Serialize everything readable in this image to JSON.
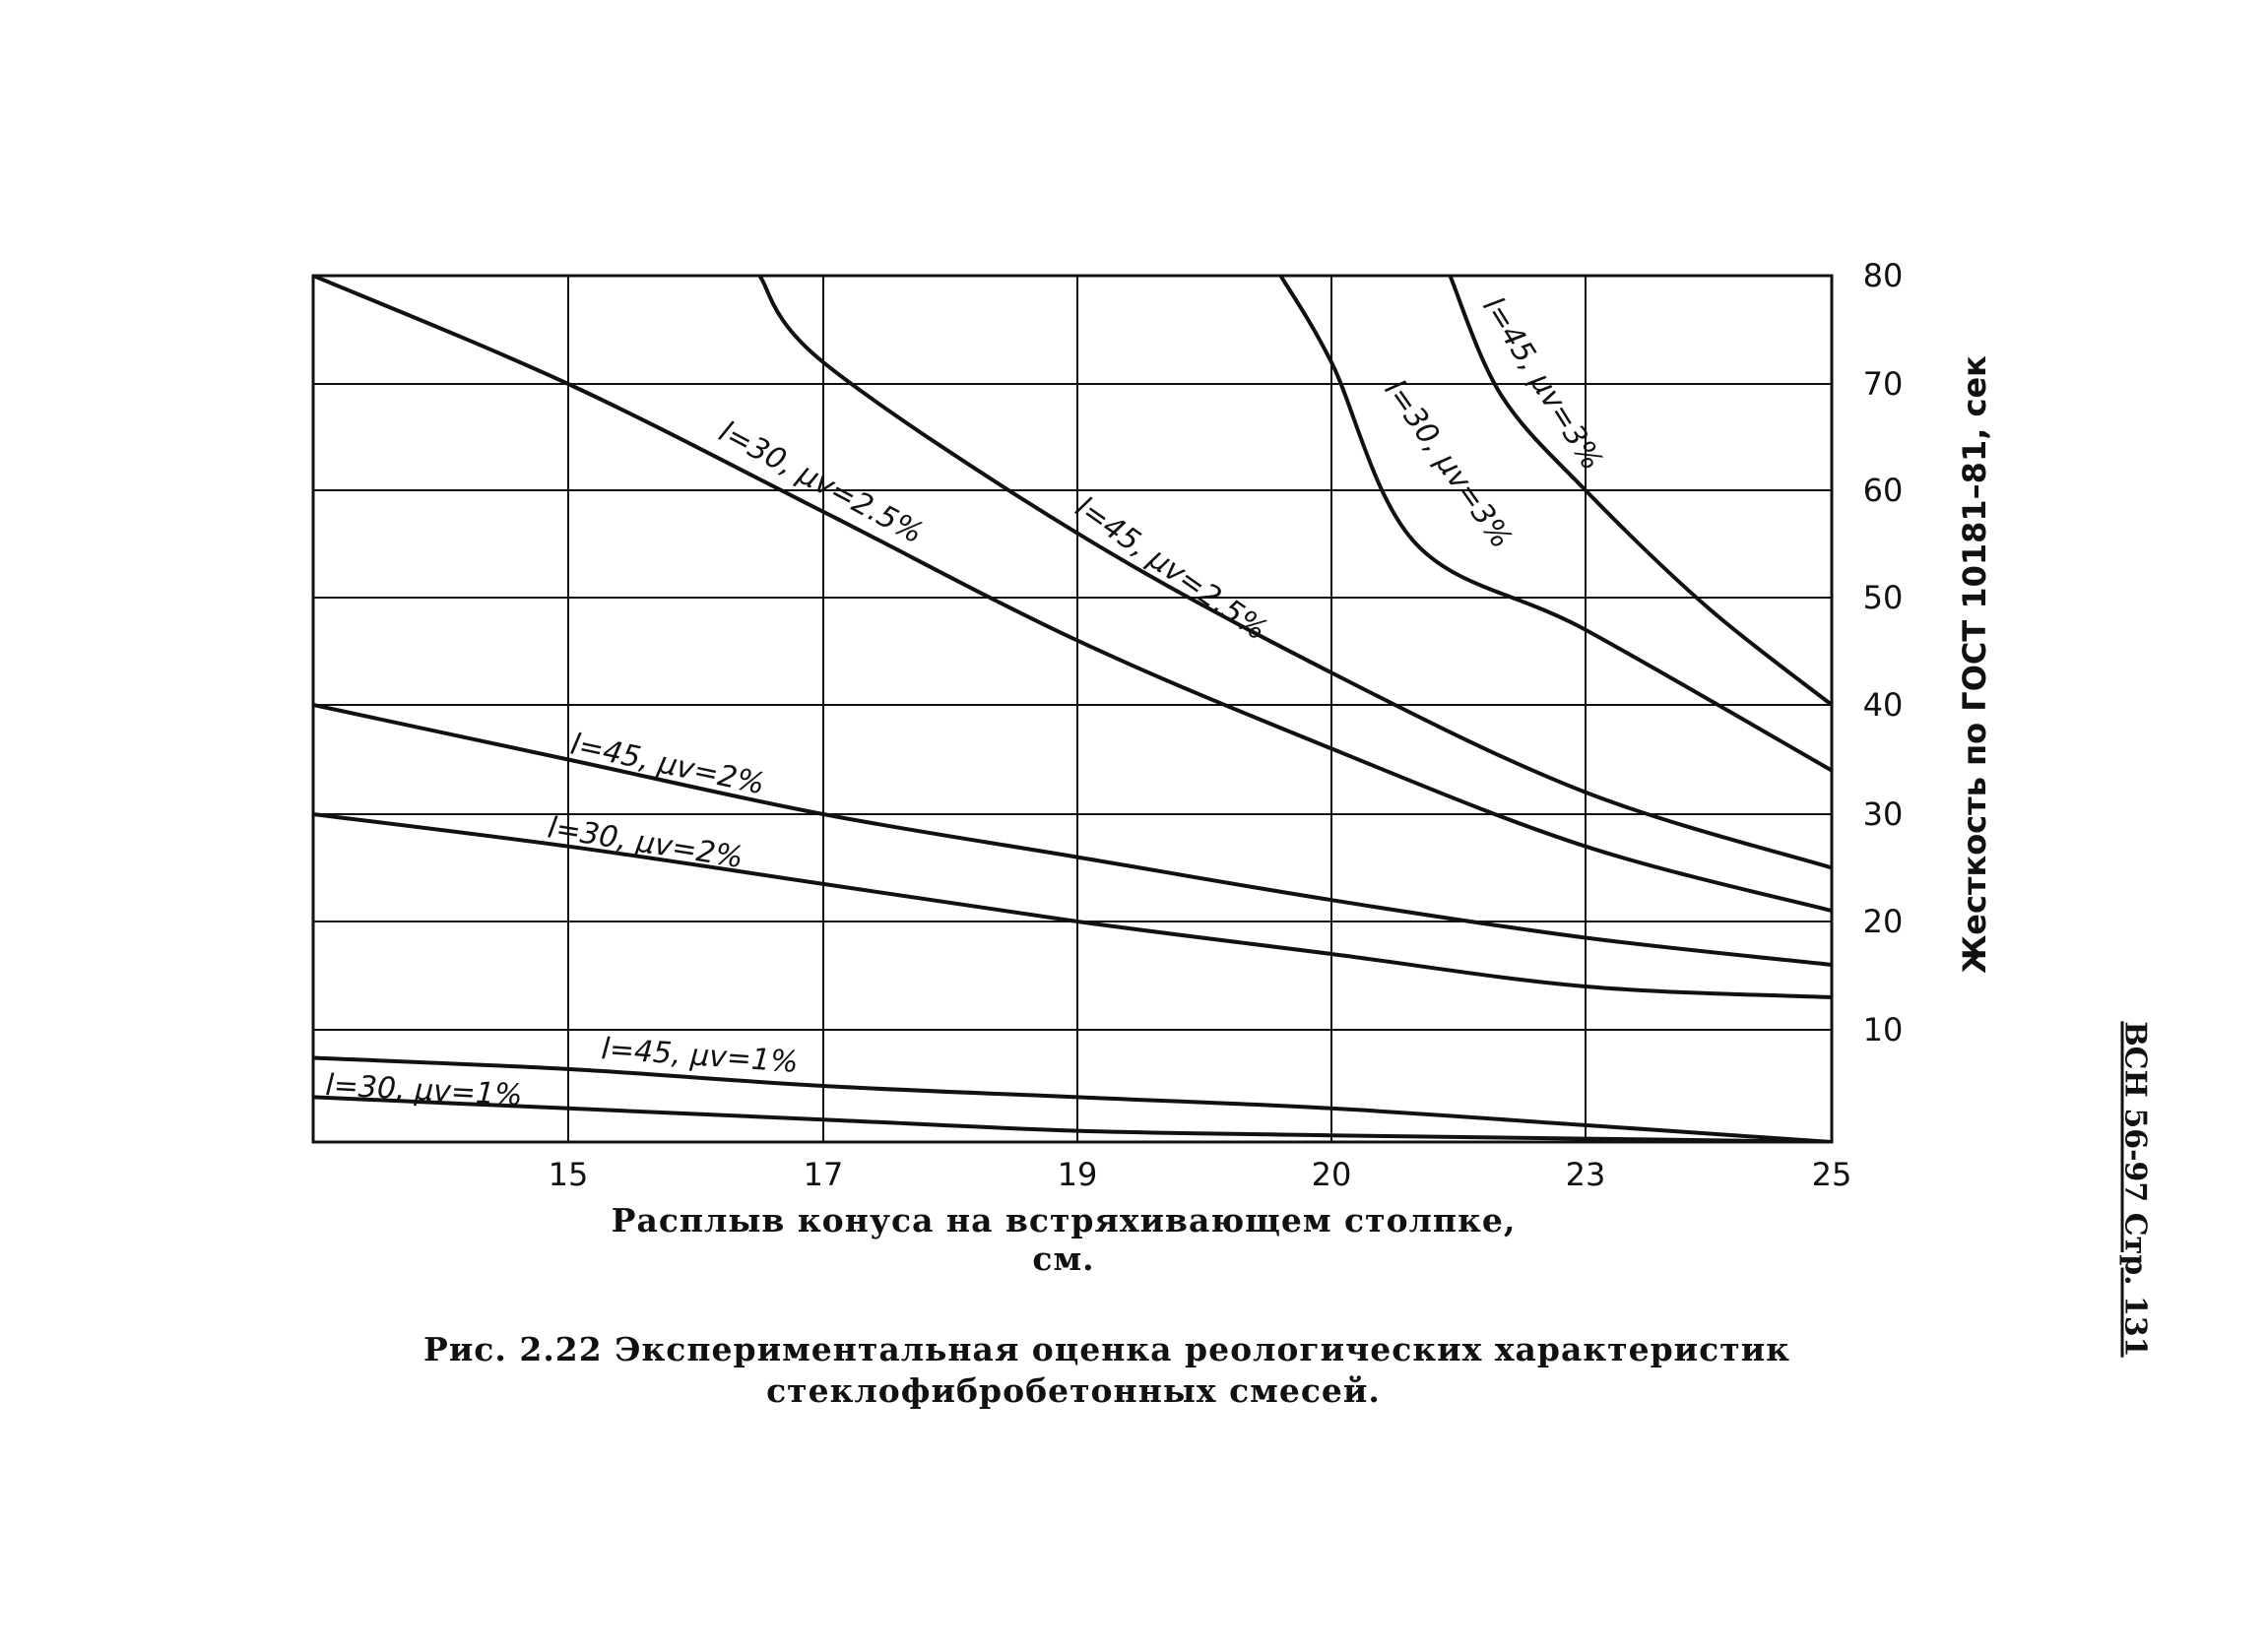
{
  "chart_data": {
    "type": "line",
    "x_ticks": [
      "15",
      "17",
      "19",
      "20",
      "23",
      "25"
    ],
    "y_ticks": [
      "10",
      "20",
      "30",
      "40",
      "50",
      "60",
      "70",
      "80"
    ],
    "xlabel": "Расплыв конуса на встряхивающем столпке, см.",
    "ylabel": "Жесткость по ГОСТ 10181–81, сек",
    "ylim": [
      0,
      80
    ],
    "grid": true,
    "series": [
      {
        "name": "l=30, μv=1%",
        "x": [
          13,
          15,
          17,
          19,
          20,
          23,
          25
        ],
        "y": [
          4,
          3,
          2,
          1,
          0.6,
          0.3,
          0
        ]
      },
      {
        "name": "l=45, μv=1%",
        "x": [
          13,
          15,
          17,
          19,
          20,
          23,
          25
        ],
        "y": [
          7.5,
          6.5,
          5,
          4,
          3,
          1.5,
          0
        ]
      },
      {
        "name": "l=30, μv=2%",
        "x": [
          13,
          15,
          17,
          19,
          20,
          23,
          25
        ],
        "y": [
          30,
          27,
          23.5,
          20,
          17,
          14,
          13
        ]
      },
      {
        "name": "l=45, μv=2%",
        "x": [
          13,
          15,
          17,
          19,
          20,
          23,
          25
        ],
        "y": [
          40,
          35,
          30,
          26,
          22,
          18.5,
          16
        ]
      },
      {
        "name": "l=30, μv=2.5%",
        "x": [
          13,
          15,
          17,
          19,
          20,
          23,
          25
        ],
        "y": [
          80,
          70,
          58,
          46,
          36,
          27,
          21
        ]
      },
      {
        "name": "l=45, μv=2.5%",
        "x": [
          16.5,
          17,
          19,
          20,
          23,
          25
        ],
        "y": [
          80,
          72,
          56,
          43,
          32,
          25
        ]
      },
      {
        "name": "l=30, μv=3%",
        "x": [
          19.8,
          20,
          21,
          23,
          25
        ],
        "y": [
          80,
          72,
          55,
          47,
          34
        ]
      },
      {
        "name": "l=45, μv=3%",
        "x": [
          21.4,
          22,
          23,
          24,
          25
        ],
        "y": [
          80,
          69,
          60,
          49,
          40
        ]
      }
    ],
    "curve_labels": [
      {
        "text": "l=30, μv=1%"
      },
      {
        "text": "l=45, μv=1%"
      },
      {
        "text": "l=30, μv=2%"
      },
      {
        "text": "l=45, μv=2%"
      },
      {
        "text": "l=30, μv=2.5%"
      },
      {
        "text": "l=45, μv=2.5%"
      },
      {
        "text": "l=30, μv=3%"
      },
      {
        "text": "l=45, μv=3%"
      }
    ]
  },
  "caption": {
    "line1": "Рис. 2.22 Экспериментальная оценка реологических характеристик",
    "line2": "стеклофибробетонных смесей."
  },
  "page_ref": "ВСН 56-97 Стр. 131"
}
